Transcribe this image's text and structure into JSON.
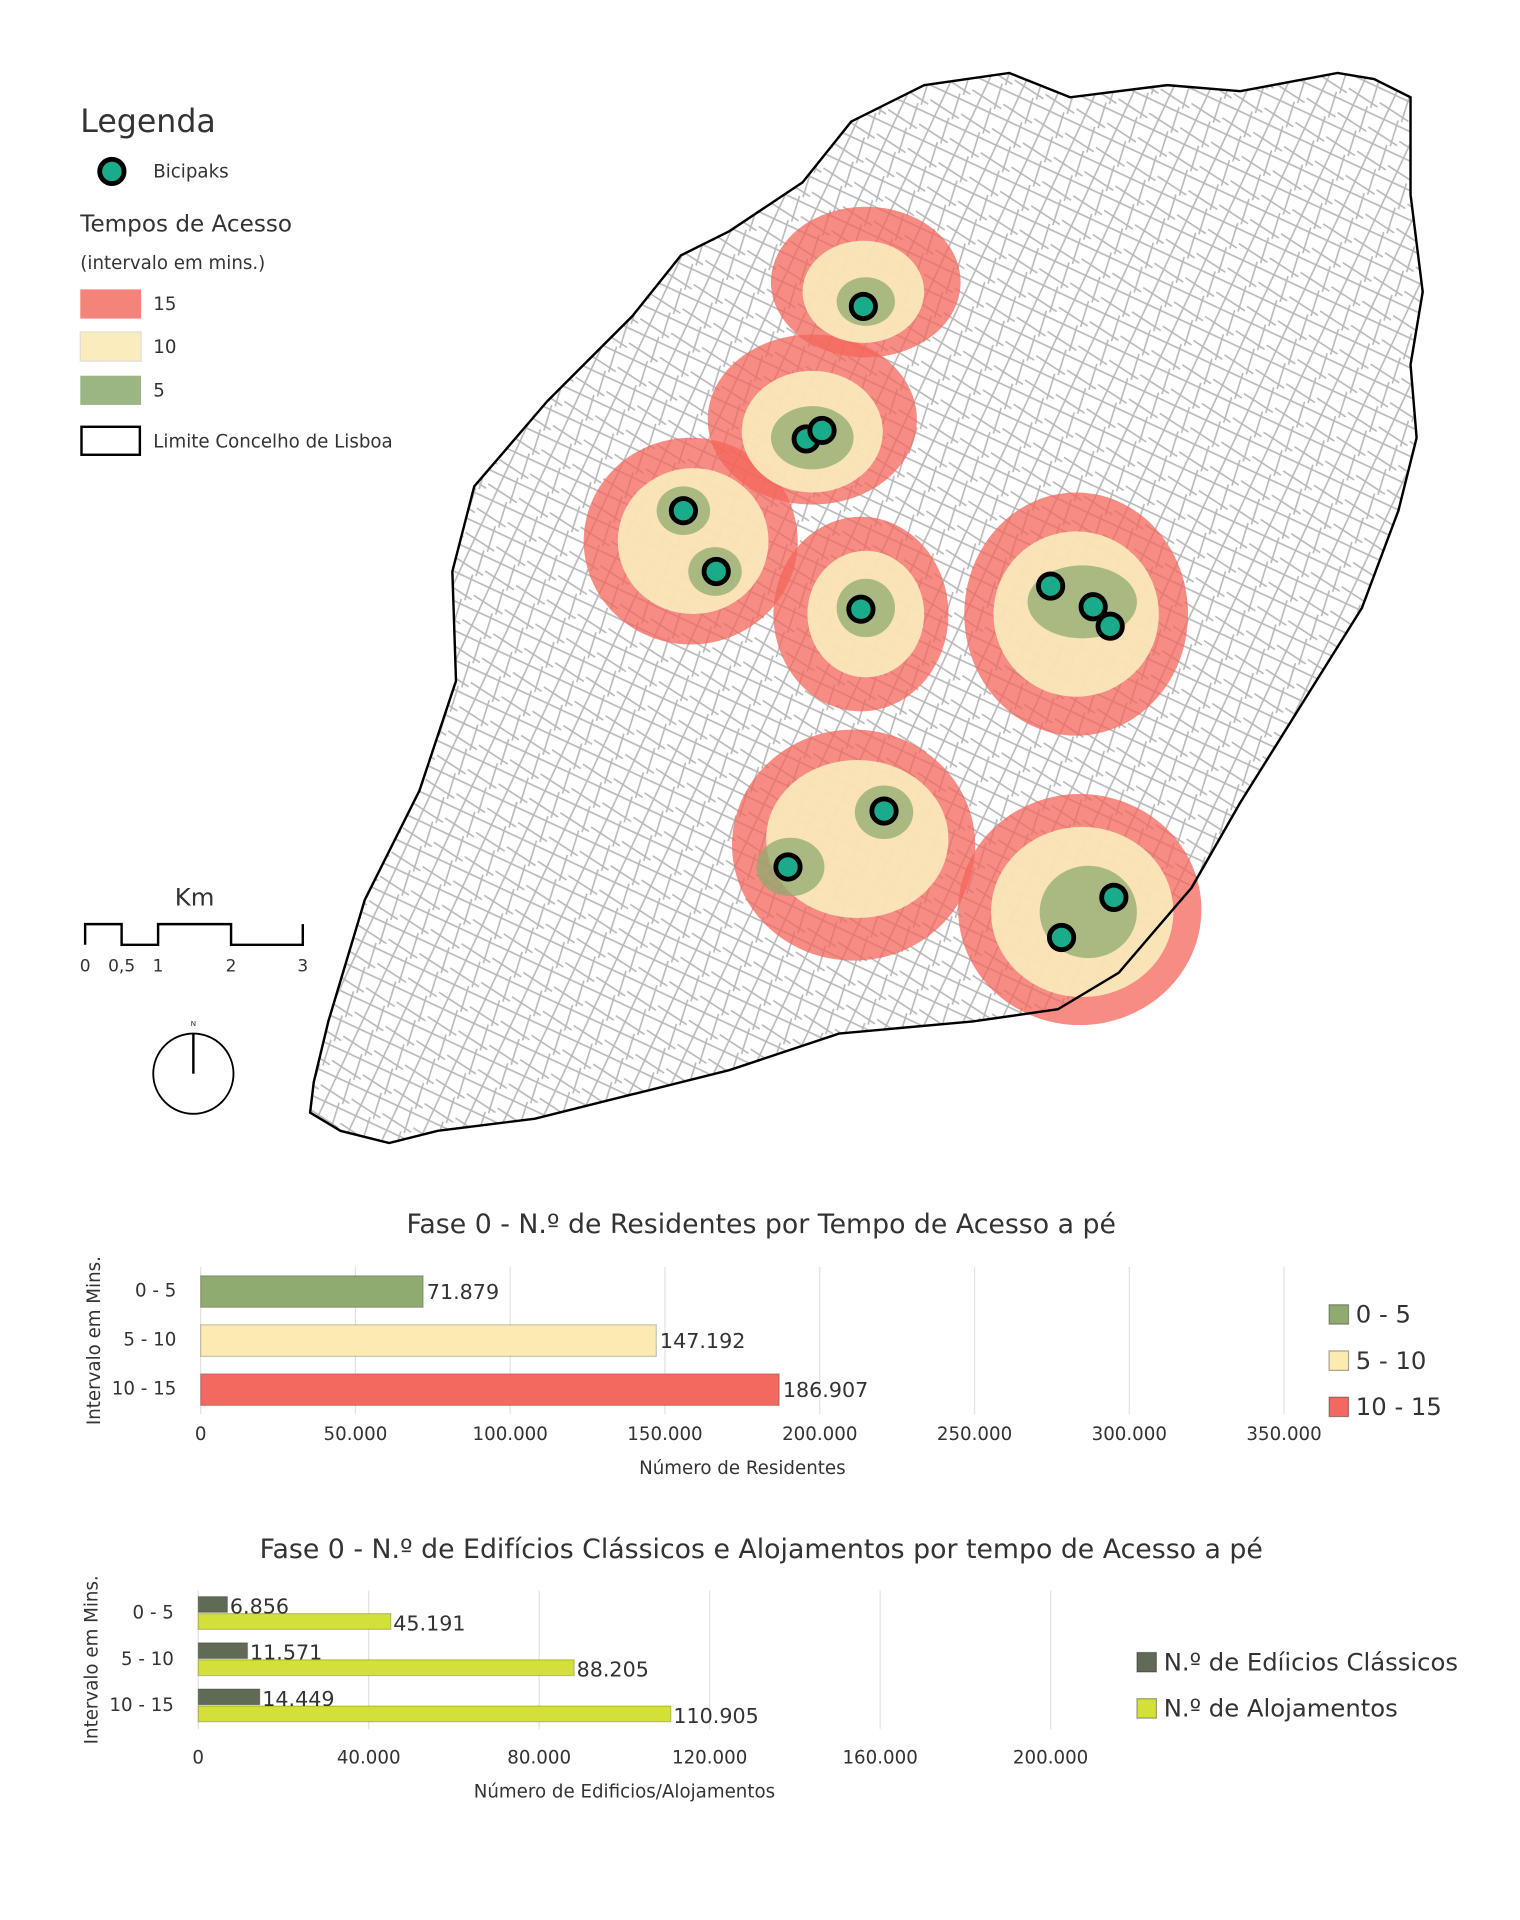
{
  "map": {
    "legend": {
      "title": "Legenda",
      "point_label": "Bicipaks",
      "access_title": "Tempos de Acesso",
      "access_subtitle": "(intervalo em mins.)",
      "access_items": [
        "15",
        "10",
        "5"
      ],
      "boundary_label": "Limite Concelho de Lisboa"
    },
    "scale": {
      "unit": "Km",
      "labels": [
        "0",
        "0,5",
        "1",
        "2",
        "3"
      ]
    },
    "north": "N"
  },
  "chart_data": [
    {
      "type": "bar",
      "orientation": "horizontal",
      "title": "Fase 0 - N.º de Residentes por Tempo de Acesso a pé",
      "y_label": "Intervalo em Mins.",
      "x_label": "Número de Residentes",
      "categories": [
        "0 - 5",
        "5 - 10",
        "10 - 15"
      ],
      "values": [
        71879,
        147192,
        186907
      ],
      "value_labels": [
        "71.879",
        "147.192",
        "186.907"
      ],
      "colors": [
        "#8fab6f",
        "#fcebb0",
        "#f4695f"
      ],
      "xlim": [
        0,
        350000
      ],
      "xticks": [
        0,
        {
          "value": 50000,
          "label": "50.000"
        },
        {
          "value": 100000,
          "label": "100.000"
        },
        {
          "value": 150000,
          "label": "150.000"
        },
        {
          "value": 200000,
          "label": "200.000"
        },
        {
          "value": 250000,
          "label": "250.000"
        },
        {
          "value": 300000,
          "label": "300.000"
        },
        {
          "value": 350000,
          "label": "350.000"
        }
      ],
      "grid": true,
      "legend": "right"
    },
    {
      "type": "grouped_bar",
      "orientation": "horizontal",
      "title": "Fase 0 - N.º de Edifícios Clássicos e Alojamentos por tempo de Acesso a pé",
      "y_label": "Intervalo em Mins.",
      "x_label": "Número de Edificios/Alojamentos",
      "categories": [
        "0 - 5",
        "5 - 10",
        "10 - 15"
      ],
      "series": [
        {
          "name": "N.º de Edíicios Clássicos",
          "color": "#5f6b55",
          "values": [
            6856,
            11571,
            14449
          ],
          "value_labels": [
            "6.856",
            "11.571",
            "14.449"
          ]
        },
        {
          "name": "N.º de Alojamentos",
          "color": "#d4e03a",
          "values": [
            45191,
            88205,
            110905
          ],
          "value_labels": [
            "45.191",
            "88.205",
            "110.905"
          ]
        }
      ],
      "xlim": [
        0,
        200000
      ],
      "xticks": [
        0,
        {
          "value": 40000,
          "label": "40.000"
        },
        {
          "value": 80000,
          "label": "80.000"
        },
        {
          "value": 120000,
          "label": "120.000"
        },
        {
          "value": 160000,
          "label": "160.000"
        },
        {
          "value": 200000,
          "label": "200.000"
        }
      ],
      "grid": true,
      "legend": "right"
    }
  ]
}
